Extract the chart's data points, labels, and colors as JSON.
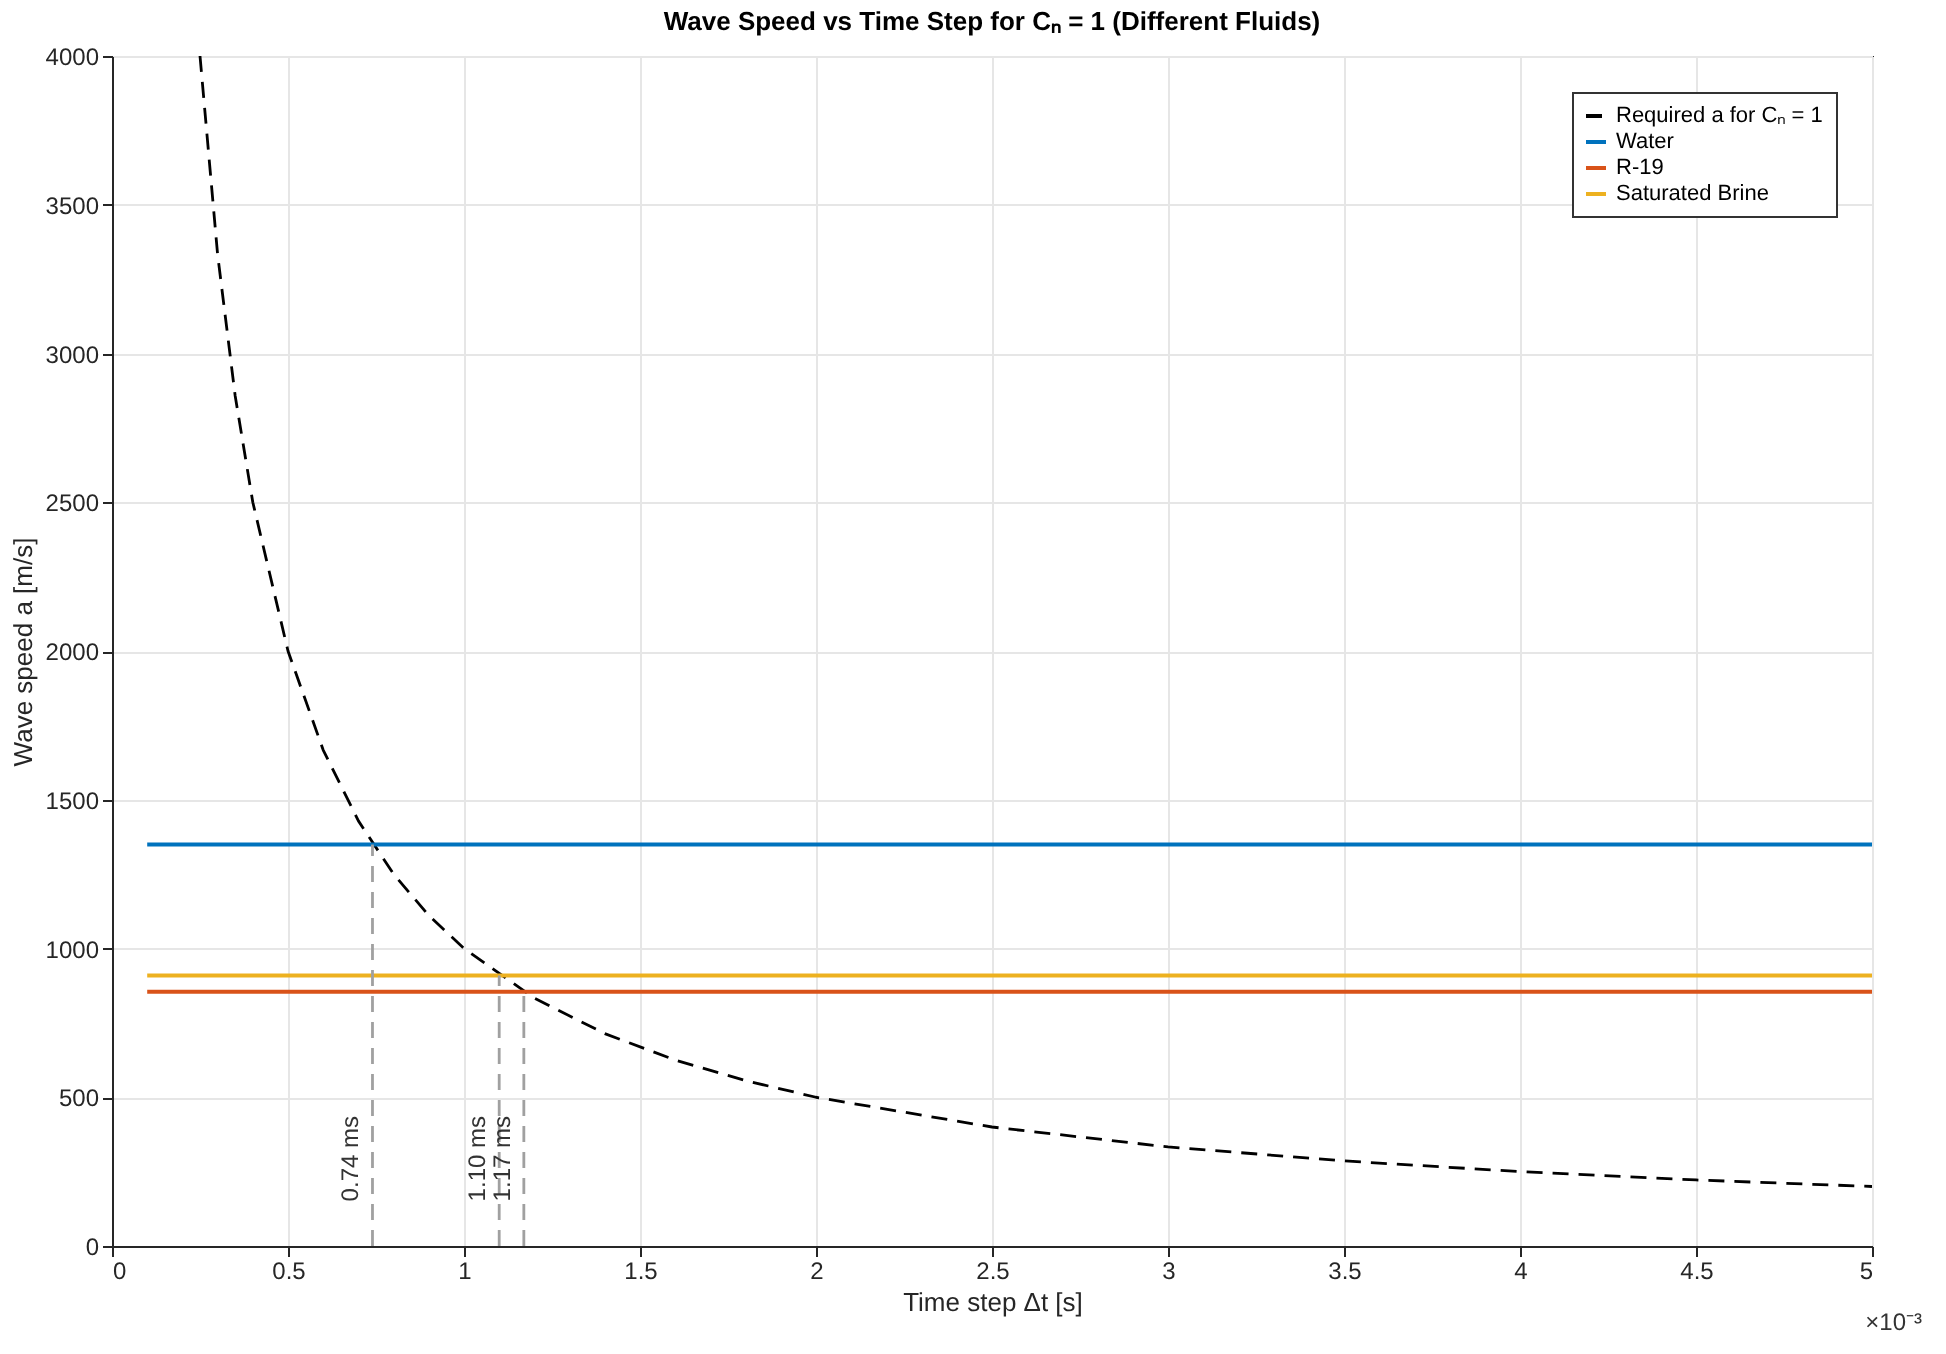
{
  "chart_data": {
    "type": "line",
    "title": "Wave Speed vs Time Step for Cₙ = 1 (Different Fluids)",
    "xlabel": "Time step Δt [s]",
    "ylabel": "Wave speed a [m/s]",
    "xlim": [
      0,
      5
    ],
    "xticks": [
      0,
      0.5,
      1,
      1.5,
      2,
      2.5,
      3,
      3.5,
      4,
      4.5,
      5
    ],
    "ylim": [
      0,
      4000
    ],
    "yticks": [
      0,
      500,
      1000,
      1500,
      2000,
      2500,
      3000,
      3500,
      4000
    ],
    "grid": true,
    "legend": "top right",
    "series": [
      {
        "name": "Required a for Cₙ = 1",
        "color": "#000000",
        "line_style": "dashed",
        "x": [
          0.25,
          0.3,
          0.35,
          0.4,
          0.5,
          0.6,
          0.7,
          0.8,
          0.9,
          1,
          1.2,
          1.4,
          1.6,
          1.8,
          2,
          2.5,
          3,
          3.5,
          4,
          4.5,
          5
        ],
        "values": [
          4000,
          3333,
          2857,
          2500,
          2000,
          1667,
          1429,
          1250,
          1111,
          1000,
          833,
          714,
          625,
          556,
          500,
          400,
          333,
          286,
          250,
          222,
          200
        ]
      },
      {
        "name": "Water",
        "color": "#0072bd",
        "line_style": "solid",
        "x": [
          0.1,
          5
        ],
        "values": [
          1350,
          1350
        ]
      },
      {
        "name": "R-19",
        "color": "#d95319",
        "line_style": "solid",
        "x": [
          0.1,
          5
        ],
        "values": [
          855,
          855
        ]
      },
      {
        "name": "Saturated Brine",
        "color": "#edb120",
        "line_style": "solid",
        "x": [
          0.1,
          5
        ],
        "values": [
          909,
          909
        ]
      },
      {
        "color": "#a0a0a0",
        "line_style": "dashed",
        "x": [
          0.74,
          0.74
        ],
        "values": [
          0,
          1350
        ]
      },
      {
        "color": "#a0a0a0",
        "line_style": "dashed",
        "x": [
          1.1,
          1.1
        ],
        "values": [
          0,
          909
        ]
      },
      {
        "color": "#a0a0a0",
        "line_style": "dashed",
        "x": [
          1.17,
          1.17
        ],
        "values": [
          0,
          855
        ]
      }
    ],
    "annotations": [
      {
        "text": "0.74 ms",
        "x": 0.74,
        "y": 150
      },
      {
        "text": "1.10 ms",
        "x": 1.1,
        "y": 150
      },
      {
        "text": "1.17 ms",
        "x": 1.17,
        "y": 150
      },
      "×10⁻³"
    ]
  }
}
